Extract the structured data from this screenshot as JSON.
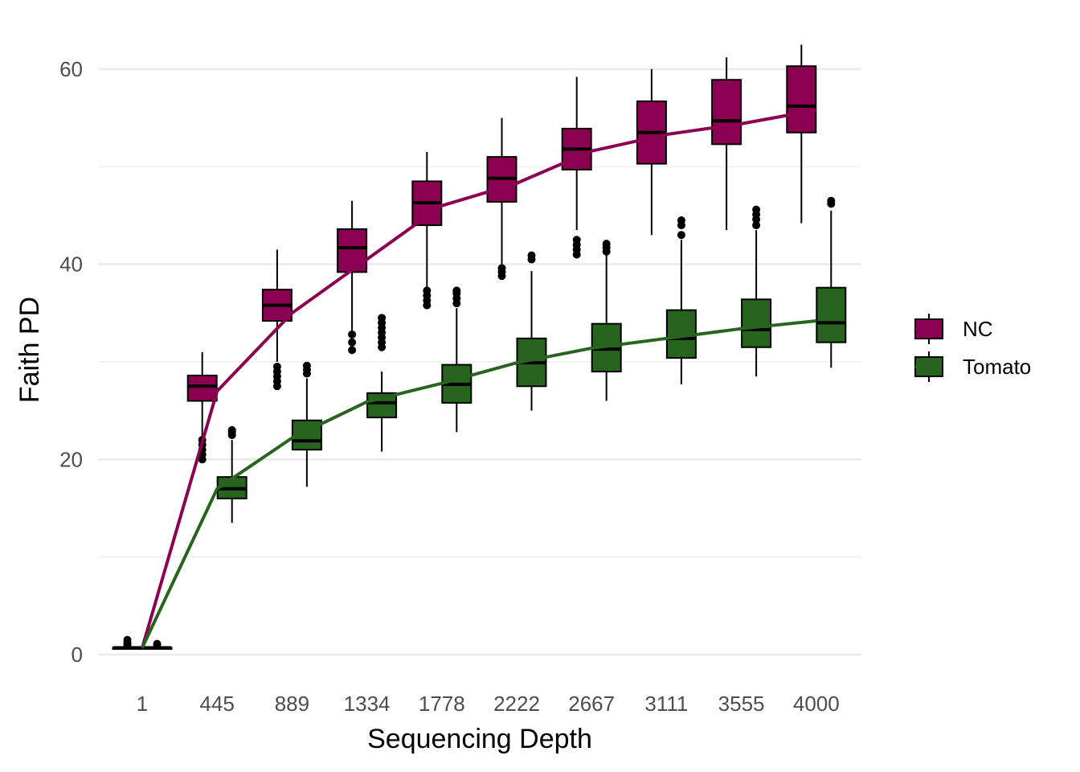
{
  "chart_data": {
    "type": "box",
    "xlabel": "Sequencing Depth",
    "ylabel": "Faith PD",
    "categories": [
      "1",
      "445",
      "889",
      "1334",
      "1778",
      "2222",
      "2667",
      "3111",
      "3555",
      "4000"
    ],
    "ylim": [
      -2,
      63
    ],
    "yticks": [
      0,
      20,
      40,
      60
    ],
    "grid": true,
    "legend_position": "right",
    "series": [
      {
        "name": "NC",
        "color": "#8b0051",
        "mean_line": [
          0.7,
          27.0,
          35.0,
          40.5,
          46.0,
          48.3,
          51.6,
          53.3,
          54.4,
          55.8
        ],
        "boxes": [
          {
            "q1": 0.7,
            "median": 0.7,
            "q3": 0.7,
            "whisker_low": 0.7,
            "whisker_high": 0.7,
            "outliers": [
              1.0,
              1.2,
              1.5
            ]
          },
          {
            "q1": 26.0,
            "median": 27.5,
            "q3": 28.6,
            "whisker_low": 22.0,
            "whisker_high": 31.0,
            "outliers": [
              20.0,
              20.5,
              21.0,
              21.5,
              22.0
            ]
          },
          {
            "q1": 34.2,
            "median": 35.8,
            "q3": 37.4,
            "whisker_low": 30.0,
            "whisker_high": 41.5,
            "outliers": [
              27.5,
              28.0,
              28.5,
              29.0,
              29.5
            ]
          },
          {
            "q1": 39.2,
            "median": 41.7,
            "q3": 43.6,
            "whisker_low": 33.0,
            "whisker_high": 46.5,
            "outliers": [
              31.2,
              32.0,
              32.8
            ]
          },
          {
            "q1": 44.0,
            "median": 46.3,
            "q3": 48.5,
            "whisker_low": 37.5,
            "whisker_high": 51.5,
            "outliers": [
              35.8,
              36.3,
              36.8,
              37.3
            ]
          },
          {
            "q1": 46.4,
            "median": 48.8,
            "q3": 51.0,
            "whisker_low": 40.0,
            "whisker_high": 55.0,
            "outliers": [
              38.8,
              39.2,
              39.6
            ]
          },
          {
            "q1": 49.7,
            "median": 51.8,
            "q3": 53.9,
            "whisker_low": 43.5,
            "whisker_high": 59.2,
            "outliers": [
              41.0,
              41.5,
              42.0,
              42.5
            ]
          },
          {
            "q1": 50.3,
            "median": 53.5,
            "q3": 56.7,
            "whisker_low": 43.0,
            "whisker_high": 60.0,
            "outliers": []
          },
          {
            "q1": 52.3,
            "median": 54.7,
            "q3": 58.9,
            "whisker_low": 43.5,
            "whisker_high": 61.2,
            "outliers": []
          },
          {
            "q1": 53.5,
            "median": 56.2,
            "q3": 60.3,
            "whisker_low": 44.2,
            "whisker_high": 62.5,
            "outliers": []
          }
        ]
      },
      {
        "name": "Tomato",
        "color": "#27641e",
        "mean_line": [
          0.7,
          17.0,
          22.2,
          25.9,
          27.8,
          29.9,
          31.4,
          32.4,
          33.4,
          34.2
        ],
        "boxes": [
          {
            "q1": 0.7,
            "median": 0.7,
            "q3": 0.7,
            "whisker_low": 0.7,
            "whisker_high": 0.7,
            "outliers": [
              1.0,
              1.1
            ]
          },
          {
            "q1": 16.0,
            "median": 17.0,
            "q3": 18.2,
            "whisker_low": 13.5,
            "whisker_high": 22.0,
            "outliers": [
              22.5,
              22.8,
              23.0
            ]
          },
          {
            "q1": 21.0,
            "median": 21.9,
            "q3": 24.0,
            "whisker_low": 17.2,
            "whisker_high": 28.3,
            "outliers": [
              28.8,
              29.2,
              29.6
            ]
          },
          {
            "q1": 24.3,
            "median": 25.8,
            "q3": 26.8,
            "whisker_low": 20.8,
            "whisker_high": 29.0,
            "outliers": [
              31.5,
              32.0,
              32.5,
              33.0,
              33.5,
              34.0,
              34.5
            ]
          },
          {
            "q1": 25.8,
            "median": 27.7,
            "q3": 29.7,
            "whisker_low": 22.8,
            "whisker_high": 35.5,
            "outliers": [
              36.0,
              36.5,
              37.0,
              37.3
            ]
          },
          {
            "q1": 27.5,
            "median": 29.9,
            "q3": 32.4,
            "whisker_low": 25.0,
            "whisker_high": 39.3,
            "outliers": [
              40.5,
              40.9
            ]
          },
          {
            "q1": 29.0,
            "median": 31.3,
            "q3": 33.9,
            "whisker_low": 26.0,
            "whisker_high": 41.0,
            "outliers": [
              41.3,
              41.7,
              42.1
            ]
          },
          {
            "q1": 30.4,
            "median": 32.4,
            "q3": 35.3,
            "whisker_low": 27.7,
            "whisker_high": 42.5,
            "outliers": [
              43.0,
              44.0,
              44.5
            ]
          },
          {
            "q1": 31.5,
            "median": 33.3,
            "q3": 36.4,
            "whisker_low": 28.5,
            "whisker_high": 43.5,
            "outliers": [
              44.0,
              44.6,
              45.1,
              45.6
            ]
          },
          {
            "q1": 32.0,
            "median": 34.0,
            "q3": 37.6,
            "whisker_low": 29.4,
            "whisker_high": 45.5,
            "outliers": [
              46.2,
              46.5
            ]
          }
        ]
      }
    ]
  }
}
